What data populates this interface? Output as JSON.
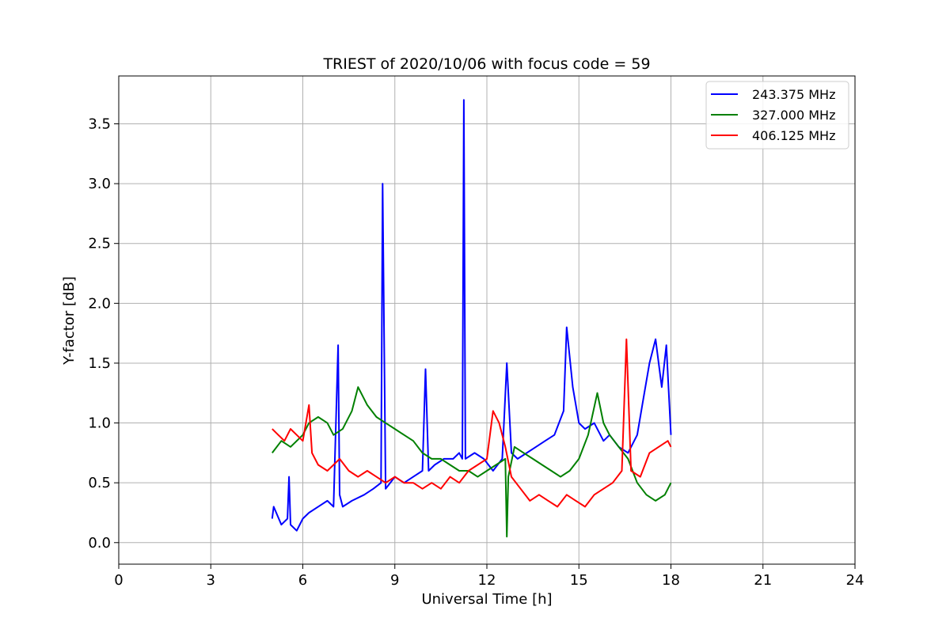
{
  "chart_data": {
    "type": "line",
    "title": "TRIEST of 2020/10/06 with focus code = 59",
    "xlabel": "Universal Time [h]",
    "ylabel": "Y-factor [dB]",
    "xlim": [
      0,
      24
    ],
    "ylim": [
      -0.18,
      3.9
    ],
    "xticks": [
      0,
      3,
      6,
      9,
      12,
      15,
      18,
      21,
      24
    ],
    "yticks": [
      0.0,
      0.5,
      1.0,
      1.5,
      2.0,
      2.5,
      3.0,
      3.5
    ],
    "xtick_labels": [
      "0",
      "3",
      "6",
      "9",
      "12",
      "15",
      "18",
      "21",
      "24"
    ],
    "ytick_labels": [
      "0.0",
      "0.5",
      "1.0",
      "1.5",
      "2.0",
      "2.5",
      "3.0",
      "3.5"
    ],
    "grid": true,
    "legend_position": "top-right",
    "series": [
      {
        "name": "243.375 MHz",
        "color": "#0000ff",
        "x": [
          5.0,
          5.05,
          5.3,
          5.5,
          5.55,
          5.6,
          5.8,
          6.0,
          6.2,
          6.5,
          6.8,
          7.0,
          7.15,
          7.2,
          7.3,
          7.6,
          8.0,
          8.3,
          8.55,
          8.6,
          8.7,
          9.0,
          9.3,
          9.6,
          9.9,
          10.0,
          10.1,
          10.3,
          10.6,
          10.9,
          11.1,
          11.2,
          11.25,
          11.3,
          11.6,
          11.9,
          12.2,
          12.5,
          12.65,
          12.8,
          13.0,
          13.3,
          13.6,
          13.9,
          14.2,
          14.5,
          14.6,
          14.8,
          15.0,
          15.2,
          15.5,
          15.8,
          16.0,
          16.3,
          16.6,
          16.9,
          17.1,
          17.3,
          17.5,
          17.7,
          17.85,
          18.0
        ],
        "y": [
          0.2,
          0.3,
          0.15,
          0.2,
          0.55,
          0.15,
          0.1,
          0.2,
          0.25,
          0.3,
          0.35,
          0.3,
          1.65,
          0.4,
          0.3,
          0.35,
          0.4,
          0.45,
          0.5,
          3.0,
          0.45,
          0.55,
          0.5,
          0.55,
          0.6,
          1.45,
          0.6,
          0.65,
          0.7,
          0.7,
          0.75,
          0.7,
          3.7,
          0.7,
          0.75,
          0.7,
          0.6,
          0.7,
          1.5,
          0.75,
          0.7,
          0.75,
          0.8,
          0.85,
          0.9,
          1.1,
          1.8,
          1.3,
          1.0,
          0.95,
          1.0,
          0.85,
          0.9,
          0.8,
          0.75,
          0.9,
          1.2,
          1.5,
          1.7,
          1.3,
          1.65,
          0.9
        ]
      },
      {
        "name": "327.000 MHz",
        "color": "#008000",
        "x": [
          5.0,
          5.3,
          5.6,
          6.0,
          6.2,
          6.5,
          6.8,
          7.0,
          7.3,
          7.6,
          7.8,
          8.1,
          8.4,
          8.7,
          9.0,
          9.3,
          9.6,
          9.9,
          10.2,
          10.5,
          10.8,
          11.1,
          11.4,
          11.7,
          12.0,
          12.3,
          12.6,
          12.65,
          12.7,
          12.9,
          13.2,
          13.5,
          13.8,
          14.1,
          14.4,
          14.7,
          15.0,
          15.3,
          15.6,
          15.8,
          16.0,
          16.3,
          16.6,
          16.9,
          17.2,
          17.5,
          17.8,
          18.0
        ],
        "y": [
          0.75,
          0.85,
          0.8,
          0.9,
          1.0,
          1.05,
          1.0,
          0.9,
          0.95,
          1.1,
          1.3,
          1.15,
          1.05,
          1.0,
          0.95,
          0.9,
          0.85,
          0.75,
          0.7,
          0.7,
          0.65,
          0.6,
          0.6,
          0.55,
          0.6,
          0.65,
          0.7,
          0.05,
          0.55,
          0.8,
          0.75,
          0.7,
          0.65,
          0.6,
          0.55,
          0.6,
          0.7,
          0.9,
          1.25,
          1.0,
          0.9,
          0.8,
          0.7,
          0.5,
          0.4,
          0.35,
          0.4,
          0.5
        ]
      },
      {
        "name": "406.125 MHz",
        "color": "#ff0000",
        "x": [
          5.0,
          5.2,
          5.4,
          5.6,
          5.8,
          6.0,
          6.2,
          6.3,
          6.5,
          6.8,
          7.0,
          7.2,
          7.5,
          7.8,
          8.1,
          8.4,
          8.7,
          9.0,
          9.3,
          9.6,
          9.9,
          10.2,
          10.5,
          10.8,
          11.1,
          11.4,
          11.7,
          12.0,
          12.2,
          12.4,
          12.6,
          12.8,
          13.1,
          13.4,
          13.7,
          14.0,
          14.3,
          14.6,
          14.9,
          15.2,
          15.5,
          15.8,
          16.1,
          16.4,
          16.55,
          16.7,
          17.0,
          17.3,
          17.6,
          17.9,
          18.0
        ],
        "y": [
          0.95,
          0.9,
          0.85,
          0.95,
          0.9,
          0.85,
          1.15,
          0.75,
          0.65,
          0.6,
          0.65,
          0.7,
          0.6,
          0.55,
          0.6,
          0.55,
          0.5,
          0.55,
          0.5,
          0.5,
          0.45,
          0.5,
          0.45,
          0.55,
          0.5,
          0.6,
          0.65,
          0.7,
          1.1,
          1.0,
          0.8,
          0.55,
          0.45,
          0.35,
          0.4,
          0.35,
          0.3,
          0.4,
          0.35,
          0.3,
          0.4,
          0.45,
          0.5,
          0.6,
          1.7,
          0.6,
          0.55,
          0.75,
          0.8,
          0.85,
          0.8
        ]
      }
    ]
  }
}
